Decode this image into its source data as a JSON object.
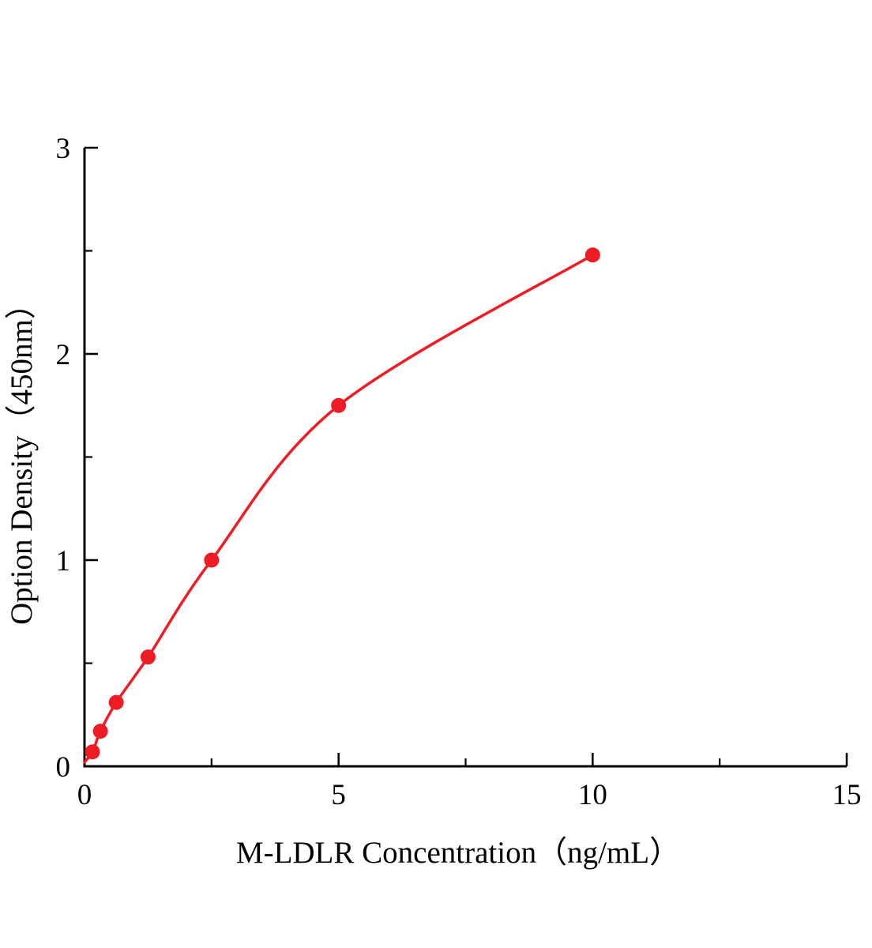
{
  "chart_data": {
    "type": "line",
    "title": "",
    "xlabel": "M-LDLR Concentration（ng/mL）",
    "ylabel": "Option Density（450nm）",
    "x": [
      0.156,
      0.313,
      0.625,
      1.25,
      2.5,
      5,
      10
    ],
    "y": [
      0.07,
      0.17,
      0.31,
      0.53,
      1.0,
      1.75,
      2.48
    ],
    "curve_start": {
      "x": 0,
      "y": 0.02
    },
    "xlim": [
      0,
      15
    ],
    "ylim": [
      0,
      3
    ],
    "xticks": [
      0,
      5,
      10,
      15
    ],
    "xminor": [
      2.5,
      7.5,
      12.5
    ],
    "yticks": [
      0,
      1,
      2,
      3
    ],
    "yminor": [
      0.5,
      1.5,
      2.5
    ],
    "legend": null,
    "grid": false,
    "line_color": "#ee1c25",
    "marker_color": "#ee1c25",
    "marker_radius": 9.5,
    "axis_color": "#000000"
  }
}
